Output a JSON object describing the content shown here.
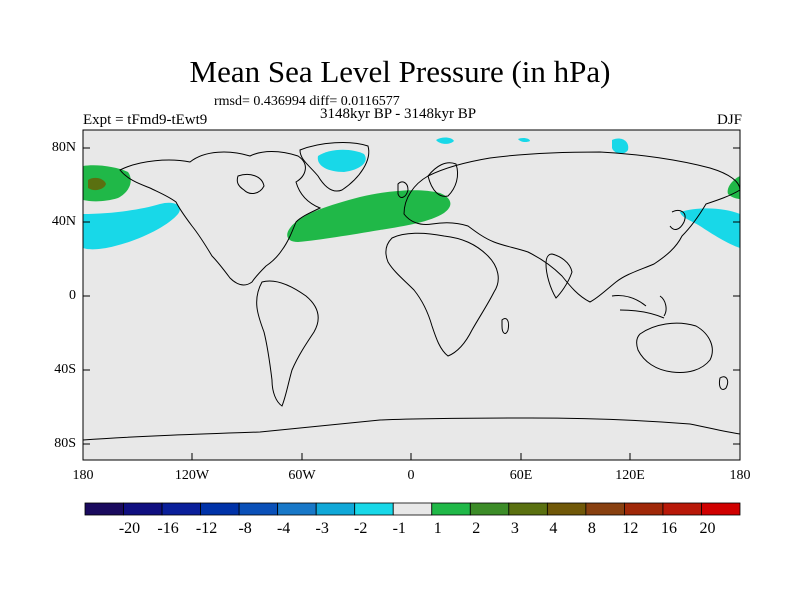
{
  "title": "Mean Sea Level Pressure (in hPa)",
  "subtitle_stats": "rmsd= 0.436994 diff= 0.0116577",
  "subtitle_period": "3148kyr BP - 3148kyr BP",
  "label_left": "Expt = tFmd9-tEwt9",
  "label_right": "DJF",
  "lat_ticks": [
    "80N",
    "40N",
    "0",
    "40S",
    "80S"
  ],
  "lon_ticks": [
    "180",
    "120W",
    "60W",
    "0",
    "60E",
    "120E",
    "180"
  ],
  "colorbar": {
    "labels": [
      "-20",
      "-16",
      "-12",
      "-8",
      "-4",
      "-3",
      "-2",
      "-1",
      "1",
      "2",
      "3",
      "4",
      "8",
      "12",
      "16",
      "20"
    ],
    "colors": [
      "#1a0a5e",
      "#100f80",
      "#0a1f9a",
      "#0032a8",
      "#0a50b8",
      "#1878c8",
      "#10a8d8",
      "#18d8e8",
      "#e8e8e8",
      "#20b848",
      "#3c8c28",
      "#5a7010",
      "#705808",
      "#884010",
      "#a02808",
      "#b81808",
      "#d00000"
    ]
  },
  "map_colors": {
    "ocean": "#e8e8e8",
    "positive": "#20b848",
    "strong_positive": "#5a7010",
    "negative": "#18d8e8"
  }
}
